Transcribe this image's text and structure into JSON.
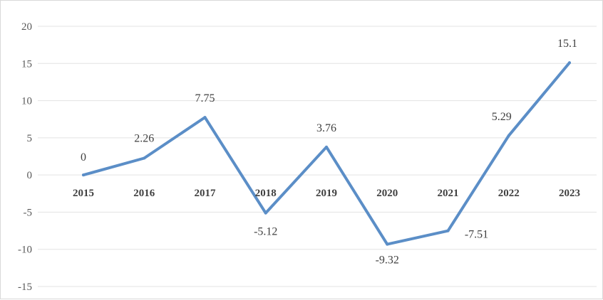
{
  "chart_data": {
    "type": "line",
    "categories": [
      "2015",
      "2016",
      "2017",
      "2018",
      "2019",
      "2020",
      "2021",
      "2022",
      "2023"
    ],
    "series": [
      {
        "values": [
          0,
          2.26,
          7.75,
          -5.12,
          3.76,
          -9.32,
          -7.51,
          5.29,
          15.1
        ]
      }
    ],
    "data_labels": [
      "0",
      "2.26",
      "7.75",
      "-5.12",
      "3.76",
      "-9.32",
      "-7.51",
      "5.29",
      "15.1"
    ],
    "y_ticks": [
      "20",
      "15",
      "10",
      "5",
      "0",
      "-5",
      "-10",
      "-15"
    ],
    "ylim": [
      -15,
      20
    ],
    "grid": true,
    "legend": "none",
    "title": "",
    "xlabel": "",
    "ylabel": "",
    "colors": {
      "line": "#5b8ec7",
      "grid": "#e3e3e3"
    }
  }
}
